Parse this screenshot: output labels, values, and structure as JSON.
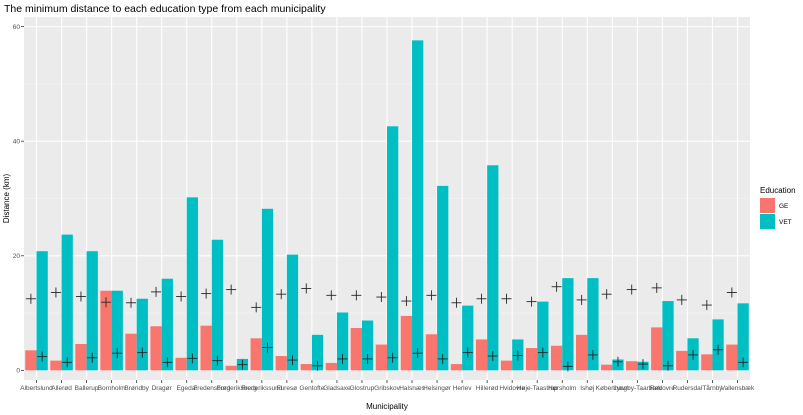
{
  "chart_data": {
    "type": "bar",
    "title": "The minimum distance to each education type from each municipality",
    "xlabel": "Municipality",
    "ylabel": "Distance (km)",
    "ylim": [
      0,
      60
    ],
    "yticks": [
      0,
      20,
      40,
      60
    ],
    "grid": true,
    "legend": {
      "title": "Education",
      "position": "right"
    },
    "categories": [
      "Albertslund",
      "Allerød",
      "Ballerup",
      "Bornholm",
      "Brøndby",
      "Dragør",
      "Egedal",
      "Fredensborg",
      "Frederiksberg",
      "Frederikssund",
      "Furesø",
      "Gentofte",
      "Gladsaxe",
      "Glostrup",
      "Gribskov",
      "Halsnæs",
      "Helsingør",
      "Herlev",
      "Hillerød",
      "Hvidovre",
      "Høje-Taastrup",
      "Hørsholm",
      "Ishøj",
      "København",
      "Lyngby-Taarbæk",
      "Rødovre",
      "Rudersdal",
      "Tårnby",
      "Vallensbæk"
    ],
    "series": [
      {
        "name": "GE",
        "color": "#F8766D",
        "values": [
          3.5,
          1.7,
          4.6,
          13.9,
          6.4,
          7.7,
          2.2,
          7.8,
          0.8,
          5.6,
          2.5,
          1.1,
          1.3,
          7.4,
          4.5,
          9.5,
          6.3,
          1.1,
          5.4,
          1.7,
          3.9,
          4.3,
          6.2,
          1.0,
          1.6,
          7.5,
          3.4,
          2.8,
          4.5
        ]
      },
      {
        "name": "VET",
        "color": "#00BFC4",
        "values": [
          20.8,
          23.7,
          20.8,
          13.9,
          12.5,
          16.0,
          30.2,
          22.8,
          2.0,
          28.2,
          20.2,
          6.2,
          10.1,
          8.7,
          42.6,
          57.6,
          32.2,
          11.3,
          35.8,
          5.4,
          12.0,
          16.1,
          16.1,
          1.9,
          1.5,
          12.1,
          5.6,
          8.9,
          11.7
        ]
      }
    ],
    "markers": {
      "shape": "plus",
      "color": "#262626",
      "GE": [
        12.5,
        13.6,
        12.9,
        11.9,
        11.8,
        13.7,
        12.9,
        13.4,
        14.1,
        11.0,
        13.3,
        14.3,
        13.1,
        13.1,
        12.8,
        12.1,
        13.1,
        11.8,
        12.5,
        12.5,
        12.0,
        14.6,
        12.3,
        13.3,
        14.1,
        14.4,
        12.3,
        11.4,
        13.6
      ],
      "VET": [
        2.4,
        1.4,
        2.2,
        3.0,
        3.1,
        1.4,
        2.1,
        1.7,
        1.0,
        4.0,
        1.8,
        0.8,
        2.0,
        2.0,
        2.2,
        3.0,
        2.0,
        3.1,
        2.5,
        2.6,
        3.1,
        0.7,
        2.7,
        1.5,
        1.1,
        0.8,
        2.7,
        3.6,
        1.4
      ]
    }
  }
}
